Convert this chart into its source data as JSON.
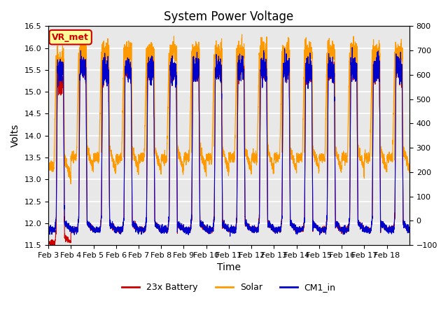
{
  "title": "System Power Voltage",
  "xlabel": "Time",
  "ylabel": "Volts",
  "ylim_left": [
    11.5,
    16.5
  ],
  "ylim_right": [
    -100,
    800
  ],
  "yticks_left": [
    11.5,
    12.0,
    12.5,
    13.0,
    13.5,
    14.0,
    14.5,
    15.0,
    15.5,
    16.0,
    16.5
  ],
  "yticks_right": [
    -100,
    0,
    100,
    200,
    300,
    400,
    500,
    600,
    700,
    800
  ],
  "xtick_labels": [
    "Feb 3",
    "Feb 4",
    "Feb 5",
    "Feb 6",
    "Feb 7",
    "Feb 8",
    "Feb 9",
    "Feb 10",
    "Feb 11",
    "Feb 12",
    "Feb 13",
    "Feb 14",
    "Feb 15",
    "Feb 16",
    "Feb 17",
    "Feb 18"
  ],
  "legend_labels": [
    "23x Battery",
    "Solar",
    "CM1_in"
  ],
  "legend_colors": [
    "#cc0000",
    "#ff9900",
    "#0000cc"
  ],
  "vr_met_label": "VR_met",
  "vr_met_color": "#cc0000",
  "vr_met_bg": "#ffff99",
  "plot_bg_color": "#e8e8e8",
  "grid_color": "#ffffff",
  "n_days": 16,
  "seed": 42
}
